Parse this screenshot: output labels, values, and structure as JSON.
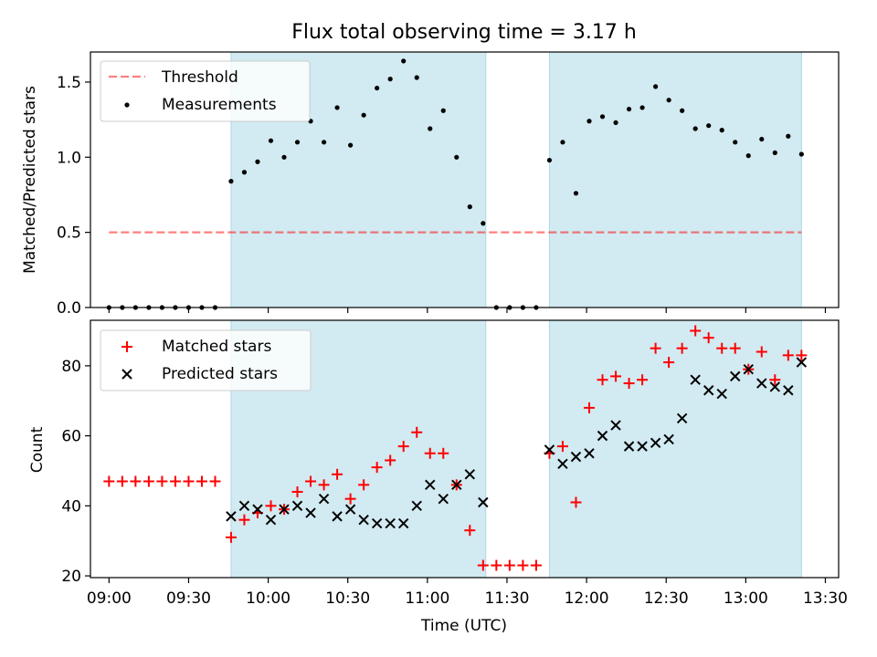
{
  "title": "Flux total observing time = 3.17 h",
  "colors": {
    "band": "#add8e6",
    "threshold": "#ff0000",
    "measurement": "#000000",
    "matched": "#ff0000",
    "predicted": "#000000"
  },
  "chart_data": [
    {
      "type": "scatter",
      "ylabel": "Matched/Predicted stars",
      "ylim": [
        0,
        1.7
      ],
      "yticks": [
        "0.0",
        "0.5",
        "1.0",
        "1.5"
      ],
      "xlim": [
        "08:53",
        "13:35"
      ],
      "shaded_intervals": [
        [
          "09:46",
          "11:22"
        ],
        [
          "11:46",
          "13:21"
        ]
      ],
      "legend": {
        "placement": "upper-left",
        "threshold_label": "Threshold",
        "measurements_label": "Measurements"
      },
      "threshold": {
        "value": 0.5,
        "x": [
          "09:00",
          "13:21"
        ]
      },
      "measurements": {
        "x": [
          "09:00",
          "09:05",
          "09:10",
          "09:15",
          "09:20",
          "09:25",
          "09:30",
          "09:35",
          "09:40",
          "09:46",
          "09:51",
          "09:56",
          "10:01",
          "10:06",
          "10:11",
          "10:16",
          "10:21",
          "10:26",
          "10:31",
          "10:36",
          "10:41",
          "10:46",
          "10:51",
          "10:56",
          "11:01",
          "11:06",
          "11:11",
          "11:16",
          "11:21",
          "11:26",
          "11:31",
          "11:36",
          "11:41",
          "11:46",
          "11:51",
          "11:56",
          "12:01",
          "12:06",
          "12:11",
          "12:16",
          "12:21",
          "12:26",
          "12:31",
          "12:36",
          "12:41",
          "12:46",
          "12:51",
          "12:56",
          "13:01",
          "13:06",
          "13:11",
          "13:16",
          "13:21"
        ],
        "y": [
          0,
          0,
          0,
          0,
          0,
          0,
          0,
          0,
          0,
          0.84,
          0.9,
          0.97,
          1.11,
          1.0,
          1.1,
          1.24,
          1.1,
          1.33,
          1.08,
          1.28,
          1.46,
          1.52,
          1.64,
          1.53,
          1.19,
          1.31,
          1.0,
          0.67,
          0.56,
          0,
          0,
          0,
          0,
          0.98,
          1.1,
          0.76,
          1.24,
          1.27,
          1.23,
          1.32,
          1.33,
          1.47,
          1.38,
          1.31,
          1.19,
          1.21,
          1.18,
          1.1,
          1.01,
          1.12,
          1.03,
          1.14,
          1.02
        ]
      }
    },
    {
      "type": "scatter",
      "xlabel": "Time (UTC)",
      "ylabel": "Count",
      "ylim": [
        19.5,
        93
      ],
      "yticks": [
        "20",
        "40",
        "60",
        "80"
      ],
      "xticks": [
        "09:00",
        "09:30",
        "10:00",
        "10:30",
        "11:00",
        "11:30",
        "12:00",
        "12:30",
        "13:00",
        "13:30"
      ],
      "xlim": [
        "08:53",
        "13:35"
      ],
      "shaded_intervals": [
        [
          "09:46",
          "11:22"
        ],
        [
          "11:46",
          "13:21"
        ]
      ],
      "legend": {
        "placement": "upper-left"
      },
      "series": [
        {
          "name": "Matched stars",
          "marker": "plus",
          "x": [
            "09:00",
            "09:05",
            "09:10",
            "09:15",
            "09:20",
            "09:25",
            "09:30",
            "09:35",
            "09:40",
            "09:46",
            "09:51",
            "09:56",
            "10:01",
            "10:06",
            "10:11",
            "10:16",
            "10:21",
            "10:26",
            "10:31",
            "10:36",
            "10:41",
            "10:46",
            "10:51",
            "10:56",
            "11:01",
            "11:06",
            "11:11",
            "11:16",
            "11:21",
            "11:26",
            "11:31",
            "11:36",
            "11:41",
            "11:46",
            "11:51",
            "11:56",
            "12:01",
            "12:06",
            "12:11",
            "12:16",
            "12:21",
            "12:26",
            "12:31",
            "12:36",
            "12:41",
            "12:46",
            "12:51",
            "12:56",
            "13:01",
            "13:06",
            "13:11",
            "13:16",
            "13:21"
          ],
          "values": [
            47,
            47,
            47,
            47,
            47,
            47,
            47,
            47,
            47,
            31,
            36,
            38,
            40,
            39,
            44,
            47,
            46,
            49,
            42,
            46,
            51,
            53,
            57,
            61,
            55,
            55,
            46,
            33,
            23,
            23,
            23,
            23,
            23,
            55,
            57,
            41,
            68,
            76,
            77,
            75,
            76,
            85,
            81,
            85,
            90,
            88,
            85,
            85,
            79,
            84,
            76,
            83,
            83
          ]
        },
        {
          "name": "Predicted stars",
          "marker": "x",
          "x": [
            "09:46",
            "09:51",
            "09:56",
            "10:01",
            "10:06",
            "10:11",
            "10:16",
            "10:21",
            "10:26",
            "10:31",
            "10:36",
            "10:41",
            "10:46",
            "10:51",
            "10:56",
            "11:01",
            "11:06",
            "11:11",
            "11:16",
            "11:21",
            "11:46",
            "11:51",
            "11:56",
            "12:01",
            "12:06",
            "12:11",
            "12:16",
            "12:21",
            "12:26",
            "12:31",
            "12:36",
            "12:41",
            "12:46",
            "12:51",
            "12:56",
            "13:01",
            "13:06",
            "13:11",
            "13:16",
            "13:21"
          ],
          "values": [
            37,
            40,
            39,
            36,
            39,
            40,
            38,
            42,
            37,
            39,
            36,
            35,
            35,
            35,
            40,
            46,
            42,
            46,
            49,
            41,
            56,
            52,
            54,
            55,
            60,
            63,
            57,
            57,
            58,
            59,
            65,
            76,
            73,
            72,
            77,
            79,
            75,
            74,
            73,
            81
          ]
        }
      ]
    }
  ]
}
